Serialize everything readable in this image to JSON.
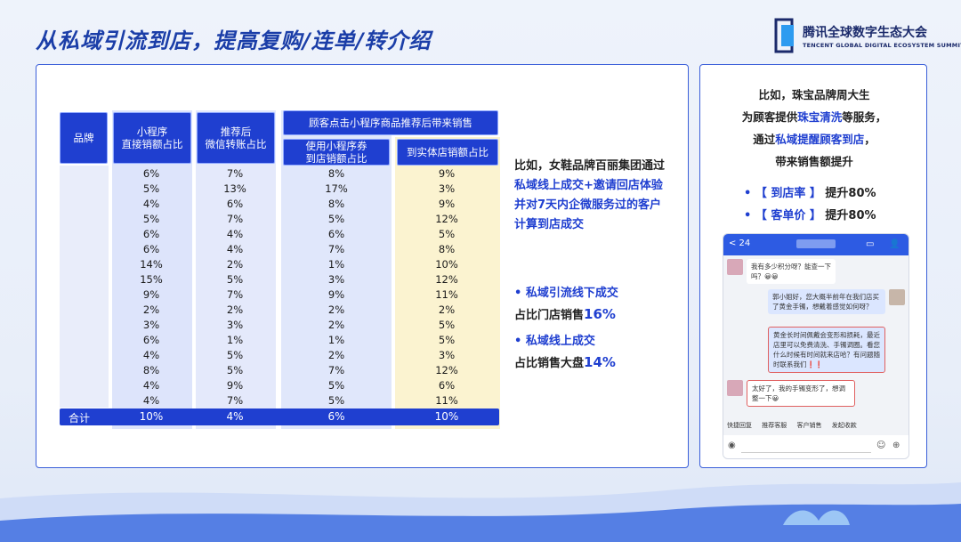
{
  "title": "从私域引流到店，提高复购/连单/转介绍",
  "logo": {
    "cn": "腾讯全球数字生态大会",
    "en": "TENCENT GLOBAL DIGITAL ECOSYSTEM SUMMIT"
  },
  "table": {
    "headers": {
      "brand": "品牌",
      "col1": "小程序\n直接销额占比",
      "col2": "推荐后\n微信转账占比",
      "group": "顾客点击小程序商品推荐后带来销售",
      "col3": "使用小程序券\n到店销额占比",
      "col4": "到实体店销额占比"
    },
    "rows": [
      [
        "6%",
        "7%",
        "8%",
        "9%"
      ],
      [
        "5%",
        "13%",
        "17%",
        "3%"
      ],
      [
        "4%",
        "6%",
        "8%",
        "9%"
      ],
      [
        "5%",
        "7%",
        "5%",
        "12%"
      ],
      [
        "6%",
        "4%",
        "6%",
        "5%"
      ],
      [
        "6%",
        "4%",
        "7%",
        "8%"
      ],
      [
        "14%",
        "2%",
        "1%",
        "10%"
      ],
      [
        "15%",
        "5%",
        "3%",
        "12%"
      ],
      [
        "9%",
        "7%",
        "9%",
        "11%"
      ],
      [
        "2%",
        "2%",
        "2%",
        "2%"
      ],
      [
        "3%",
        "3%",
        "2%",
        "5%"
      ],
      [
        "6%",
        "1%",
        "1%",
        "5%"
      ],
      [
        "4%",
        "5%",
        "2%",
        "3%"
      ],
      [
        "8%",
        "5%",
        "7%",
        "12%"
      ],
      [
        "4%",
        "9%",
        "5%",
        "6%"
      ],
      [
        "4%",
        "7%",
        "5%",
        "11%"
      ]
    ],
    "total": {
      "label": "合计",
      "values": [
        "10%",
        "4%",
        "6%",
        "10%"
      ]
    }
  },
  "middle": {
    "line1": "比如，女鞋品牌百丽集团通过",
    "line2": "私域线上成交+邀请回店体验",
    "line3": "并对7天内企微服务过的客户",
    "line4": "计算到店成交",
    "b1": "•  私域引流线下成交",
    "b1_sub_a": "占比门店销售",
    "b1_sub_b": "16%",
    "b2": "•  私域线上成交",
    "b2_sub_a": "占比销售大盘",
    "b2_sub_b": "14%"
  },
  "right": {
    "l1": "比如，珠宝品牌周大生",
    "l2a": "为顾客提供",
    "l2b": "珠宝清洗",
    "l2c": "等服务，",
    "l3a": "通过",
    "l3b": "私域提醒顾客到店",
    "l3c": "，",
    "l4": "带来销售额提升",
    "b1": "•  【 到店率 】",
    "b1v": "提升80%",
    "b2": "•  【 客单价 】",
    "b2v": "提升80%"
  },
  "chat": {
    "back": "< 24",
    "msg1": "我有多少积分呀？能查一下吗？😀😀",
    "msg2": "郭小姐好，您大概半前年在我们店买了黄金手镯，想戴着感觉如何呀？",
    "msg3": "黄金长时间佩戴会变形和损耗，最近店里可以免费清洗、手镯调圈。看您什么时候有时间就来店哈？有问题随时联系我们❗❗",
    "msg4": "太好了，我的手镯变形了，想调整一下😀",
    "quick": [
      "快捷回复",
      "推荐客服",
      "客户销售",
      "发起收款"
    ]
  }
}
